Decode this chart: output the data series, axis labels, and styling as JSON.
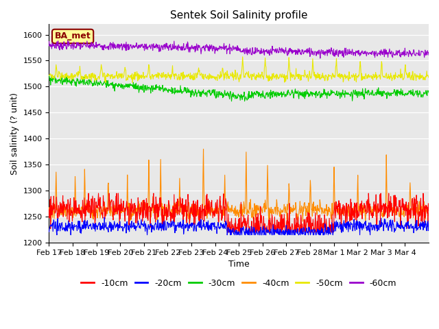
{
  "title": "Sentek Soil Salinity profile",
  "xlabel": "Time",
  "ylabel": "Soil salinity (? unit)",
  "legend_label": "BA_met",
  "ylim": [
    1200,
    1620
  ],
  "yticks": [
    1200,
    1250,
    1300,
    1350,
    1400,
    1450,
    1500,
    1550,
    1600
  ],
  "line_colors": {
    "-10cm": "#ff0000",
    "-20cm": "#0000ff",
    "-30cm": "#00cc00",
    "-40cm": "#ff8c00",
    "-50cm": "#e8e800",
    "-60cm": "#9900cc"
  },
  "n_points": 960,
  "background_color": "#e8e8e8",
  "date_labels": [
    "Feb 17",
    "Feb 18",
    "Feb 19",
    "Feb 20",
    "Feb 21",
    "Feb 22",
    "Feb 23",
    "Feb 24",
    "Feb 25",
    "Feb 26",
    "Feb 27",
    "Feb 28",
    "Mar 1",
    "Mar 2",
    "Mar 3",
    "Mar 4"
  ]
}
